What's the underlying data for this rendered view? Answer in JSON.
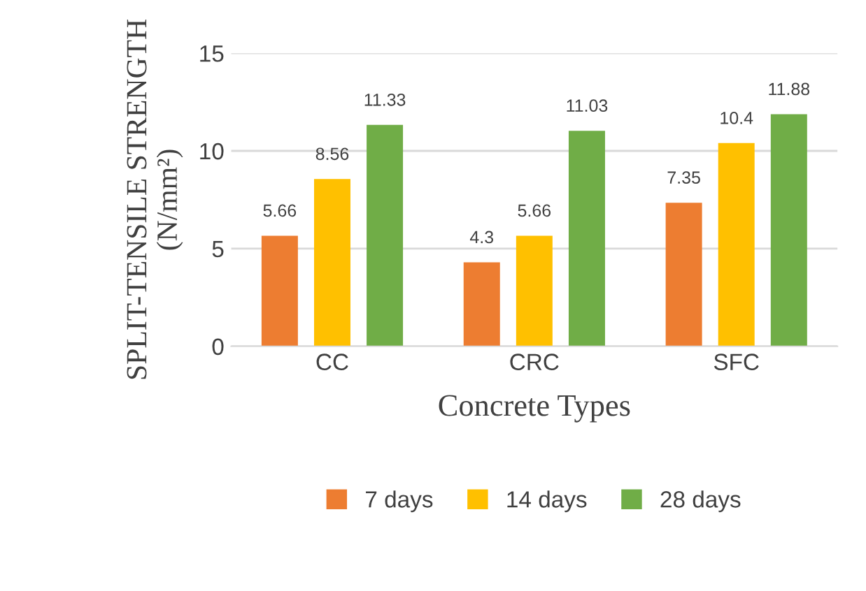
{
  "chart_data": {
    "type": "bar",
    "xlabel": "Concrete Types",
    "ylabel": "SPLIT-TENSILE STRENGTH (N/mm²)",
    "categories": [
      "CC",
      "CRC",
      "SFC"
    ],
    "series": [
      {
        "name": "7 days",
        "color": "#ed7d31",
        "values": [
          5.66,
          4.3,
          7.35
        ]
      },
      {
        "name": "14 days",
        "color": "#ffc000",
        "values": [
          8.56,
          5.66,
          10.4
        ]
      },
      {
        "name": "28 days",
        "color": "#70ad47",
        "values": [
          11.33,
          11.03,
          11.88
        ]
      }
    ],
    "ylim": [
      0,
      15
    ],
    "yticks": [
      0,
      5,
      10,
      15
    ],
    "grid": "y",
    "legend": "bottom",
    "data_labels": true
  }
}
